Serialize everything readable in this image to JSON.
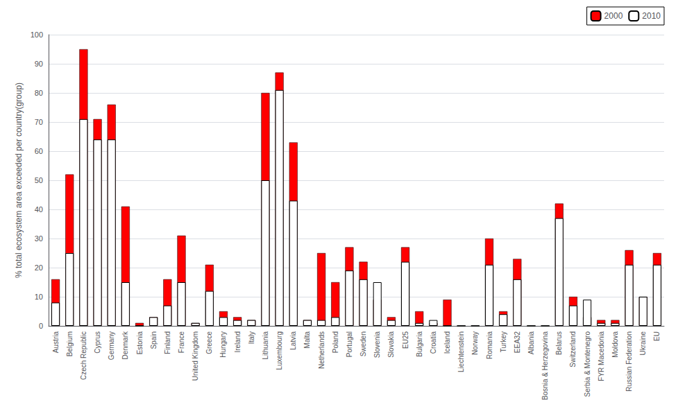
{
  "chart_data": {
    "type": "bar",
    "ylabel": "% total ecosystem area exceeded per country(group)",
    "categories": [
      "Austria",
      "Belgium",
      "Czech Republic",
      "Cyprus",
      "Germany",
      "Denmark",
      "Estonia",
      "Spain",
      "Finland",
      "France",
      "United Kingdom",
      "Greece",
      "Hungary",
      "Ireland",
      "Italy",
      "Lithuania",
      "Luxembourg",
      "Latvia",
      "Malta",
      "Netherlands",
      "Poland",
      "Portugal",
      "Sweden",
      "Slovenia",
      "Slovakia",
      "EU25",
      "Bulgaria",
      "Croatia",
      "Iceland",
      "Liechtenstein",
      "Norway",
      "Romania",
      "Turkey",
      "EEA32",
      "Albania",
      "Bosnia & Herzegovina",
      "Belarus",
      "Switzerland",
      "Serbia & Montenegro",
      "FYR Macedonia",
      "Moldova",
      "Russian Federation",
      "Ukraine",
      "EU"
    ],
    "series": [
      {
        "name": "2000",
        "color": "#FF0000",
        "values": [
          16,
          52,
          95,
          71,
          76,
          41,
          1,
          3,
          16,
          31,
          1,
          21,
          5,
          3,
          2,
          80,
          87,
          63,
          2,
          25,
          15,
          27,
          22,
          9,
          3,
          27,
          5,
          1,
          9,
          0,
          0,
          30,
          5,
          23,
          0,
          0,
          42,
          10,
          3,
          2,
          2,
          26,
          10,
          25
        ]
      },
      {
        "name": "2010",
        "color": "#FFFFFF",
        "values": [
          8,
          25,
          71,
          64,
          64,
          15,
          0,
          3,
          7,
          15,
          1,
          12,
          3,
          2,
          2,
          50,
          81,
          43,
          2,
          2,
          3,
          19,
          16,
          15,
          2,
          22,
          1,
          2,
          0,
          0,
          0,
          21,
          4,
          16,
          0,
          0,
          37,
          7,
          9,
          1,
          1,
          21,
          10,
          21
        ]
      }
    ],
    "ylim": [
      0,
      100
    ],
    "yticks": [
      0,
      10,
      20,
      30,
      40,
      50,
      60,
      70,
      80,
      90,
      100
    ],
    "grid": true,
    "legend": "upper right"
  }
}
